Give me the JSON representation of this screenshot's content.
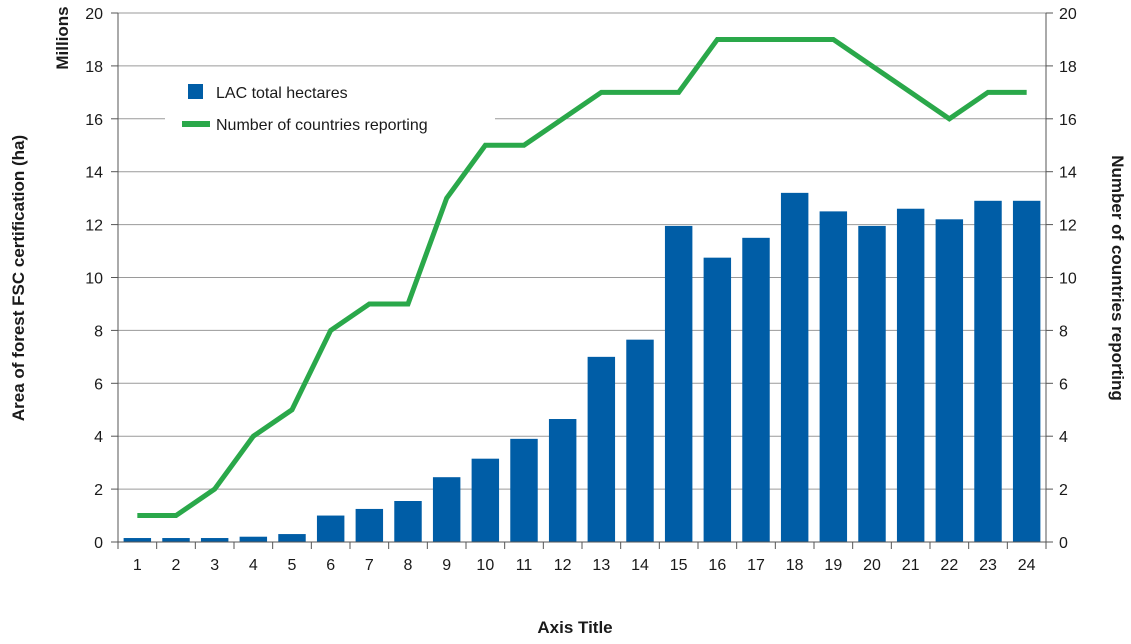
{
  "chart_data": {
    "type": "bar",
    "categories": [
      "1",
      "2",
      "3",
      "4",
      "5",
      "6",
      "7",
      "8",
      "9",
      "10",
      "11",
      "12",
      "13",
      "14",
      "15",
      "16",
      "17",
      "18",
      "19",
      "20",
      "21",
      "22",
      "23",
      "24"
    ],
    "series": [
      {
        "name": "LAC total hectares",
        "type": "bar",
        "axis": "left",
        "color": "#005da6",
        "values": [
          0.15,
          0.15,
          0.15,
          0.2,
          0.3,
          1.0,
          1.25,
          1.55,
          2.45,
          3.15,
          3.9,
          4.65,
          7.0,
          7.65,
          11.95,
          10.75,
          11.5,
          13.2,
          12.5,
          11.95,
          12.6,
          12.2,
          12.9,
          12.9
        ]
      },
      {
        "name": "Number of countries reporting",
        "type": "line",
        "axis": "right",
        "color": "#2aa84a",
        "values": [
          1,
          1,
          2,
          4,
          5,
          8,
          9,
          9,
          13,
          15,
          15,
          16,
          17,
          17,
          17,
          19,
          19,
          19,
          19,
          18,
          17,
          16,
          17,
          17
        ]
      }
    ],
    "xlabel": "Axis Title",
    "ylabel": "Area of forest FSC certification (ha)",
    "ylabel_unit": "Millions",
    "y2label": "Number of countries reporting",
    "ylim": [
      0,
      20
    ],
    "y2lim": [
      0,
      20
    ],
    "yticks": [
      "0",
      "2",
      "4",
      "6",
      "8",
      "10",
      "12",
      "14",
      "16",
      "18",
      "20"
    ],
    "y2ticks": [
      "0",
      "2",
      "4",
      "6",
      "8",
      "10",
      "12",
      "14",
      "16",
      "18",
      "20"
    ],
    "grid": true,
    "legend_position": "top-left"
  }
}
